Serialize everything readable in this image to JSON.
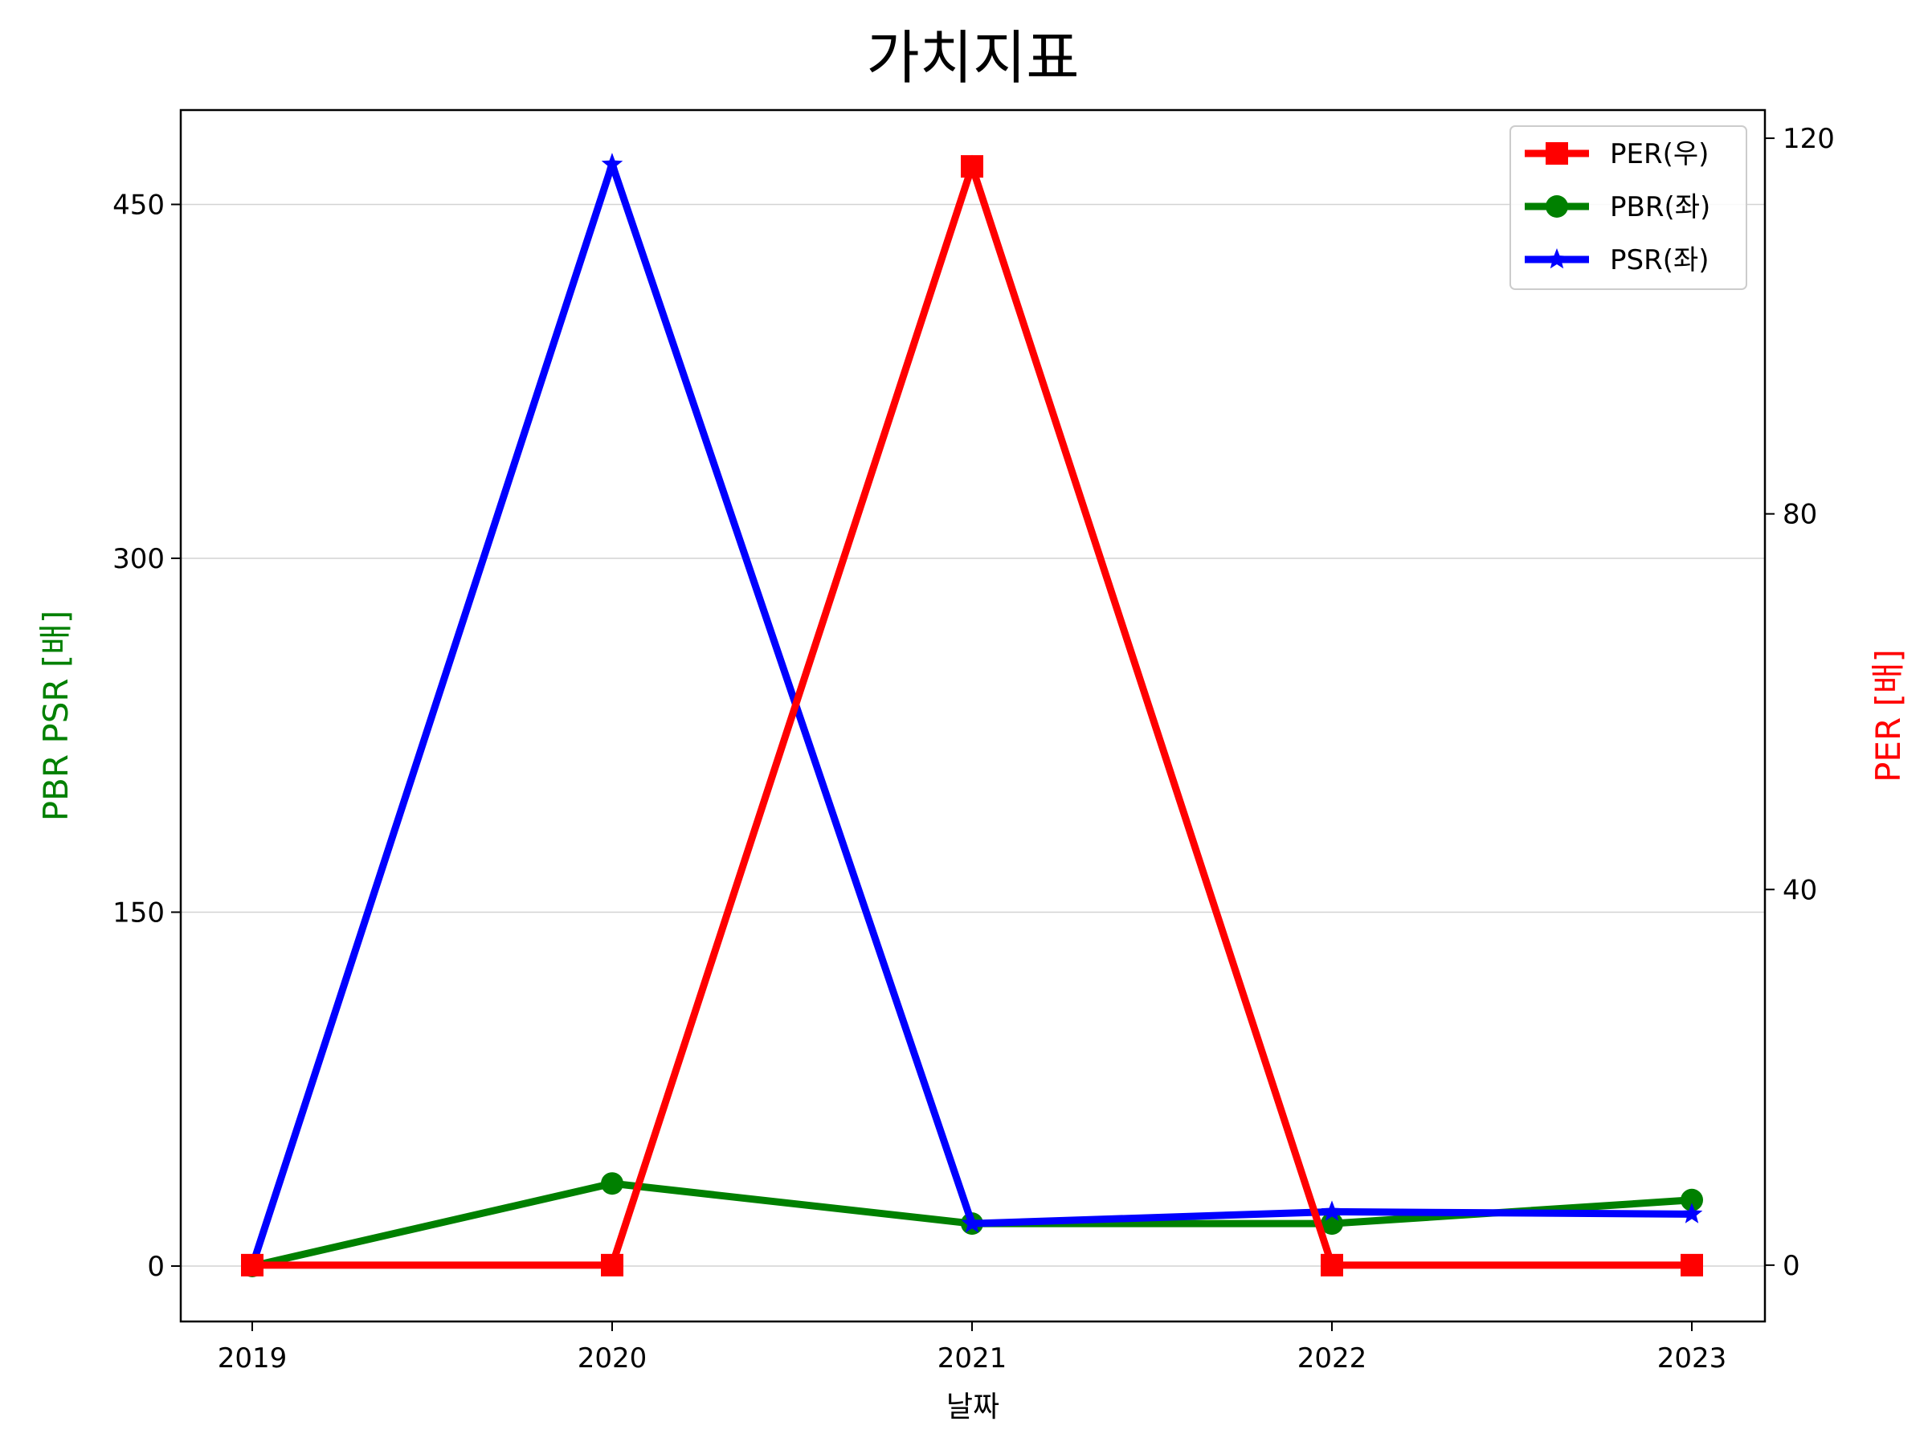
{
  "chart_data": {
    "type": "line",
    "title": "가치지표",
    "xlabel": "날짜",
    "ylabel_left": "PBR PSR [배]",
    "ylabel_right": "PER [배]",
    "categories": [
      "2019",
      "2020",
      "2021",
      "2022",
      "2023"
    ],
    "left_axis": {
      "ylim": [
        -23.5,
        490
      ],
      "ticks": [
        0,
        150,
        300,
        450
      ],
      "tick_labels": [
        "0",
        "150",
        "300",
        "450"
      ]
    },
    "right_axis": {
      "ylim": [
        -6,
        123
      ],
      "ticks": [
        0,
        40,
        80,
        120
      ],
      "tick_labels": [
        "0",
        "40",
        "80",
        "120"
      ]
    },
    "grid": true,
    "legend_position": "top-right",
    "series": [
      {
        "name": "PER(우)",
        "axis": "right",
        "color": "#ff0000",
        "marker": "square",
        "values": [
          0,
          0,
          117,
          0,
          0
        ]
      },
      {
        "name": "PBR(좌)",
        "axis": "left",
        "color": "#008000",
        "marker": "circle",
        "values": [
          0,
          35,
          18,
          18,
          28
        ]
      },
      {
        "name": "PSR(좌)",
        "axis": "left",
        "color": "#0000ff",
        "marker": "star",
        "values": [
          0,
          467,
          18,
          23,
          22
        ]
      }
    ],
    "colors": {
      "ylabel_left": "#008000",
      "ylabel_right": "#ff0000"
    }
  }
}
